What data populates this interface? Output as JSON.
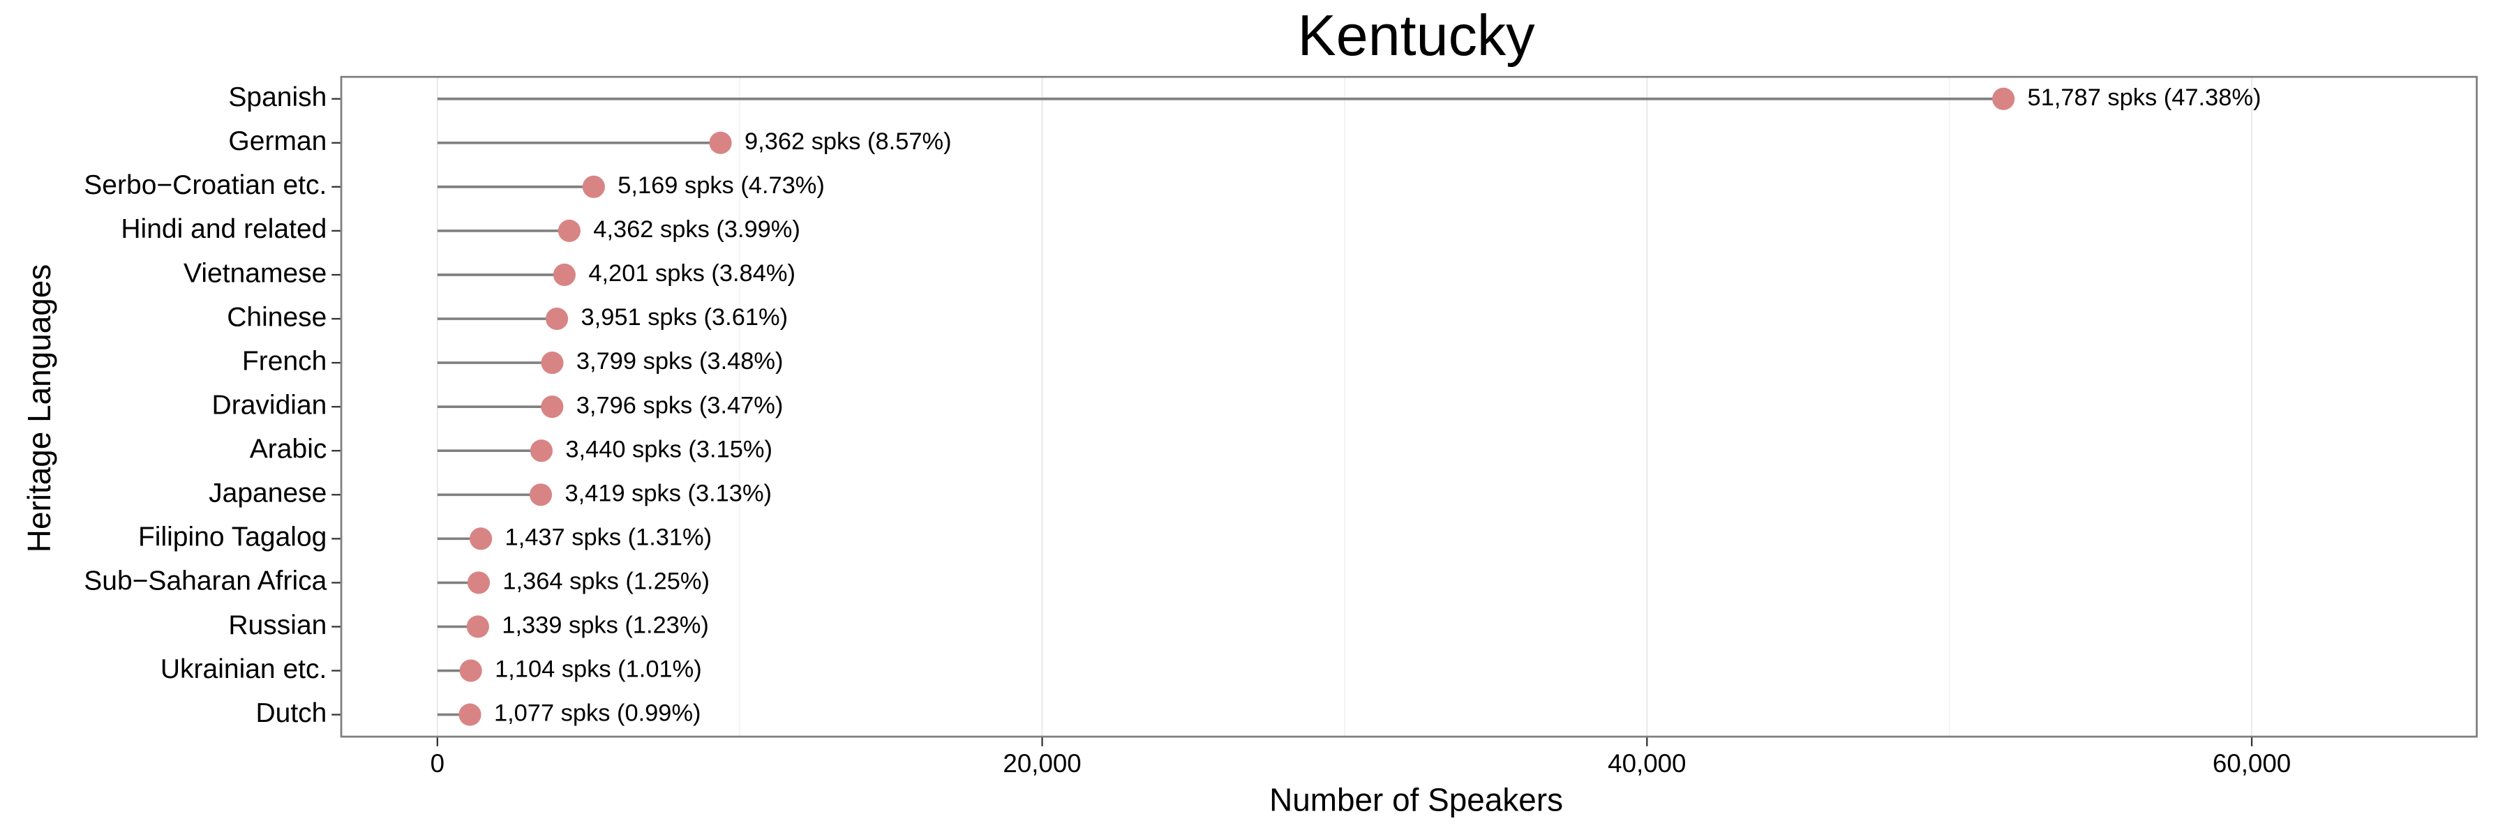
{
  "chart_data": {
    "type": "lollipop",
    "title": "Kentucky",
    "x_label": "Number of Speakers",
    "y_label": "Heritage Languages",
    "categories": [
      "Spanish",
      "German",
      "Serbo−Croatian etc.",
      "Hindi and related",
      "Vietnamese",
      "Chinese",
      "French",
      "Dravidian",
      "Arabic",
      "Japanese",
      "Filipino Tagalog",
      "Sub−Saharan Africa",
      "Russian",
      "Ukrainian etc.",
      "Dutch"
    ],
    "values": [
      51787,
      9362,
      5169,
      4362,
      4201,
      3951,
      3799,
      3796,
      3440,
      3419,
      1437,
      1364,
      1339,
      1104,
      1077
    ],
    "value_labels": [
      "51,787 spks (47.38%)",
      "9,362 spks (8.57%)",
      "5,169 spks (4.73%)",
      "4,362 spks (3.99%)",
      "4,201 spks (3.84%)",
      "3,951 spks (3.61%)",
      "3,799 spks (3.48%)",
      "3,796 spks (3.47%)",
      "3,440 spks (3.15%)",
      "3,419 spks (3.13%)",
      "1,437 spks (1.31%)",
      "1,364 spks (1.25%)",
      "1,339 spks (1.23%)",
      "1,104 spks (1.01%)",
      "1,077 spks (0.99%)"
    ],
    "color": "#d98484",
    "stem_color": "#808080",
    "xlim": [
      -3180,
      67440
    ],
    "xticks": [
      0,
      {
        "value": 20000,
        "label": "20,000"
      },
      {
        "value": 40000,
        "label": "40,000"
      },
      {
        "value": 60000,
        "label": "60,000"
      }
    ],
    "x_minor_grid": [
      10000,
      30000,
      50000
    ],
    "grid": true
  }
}
